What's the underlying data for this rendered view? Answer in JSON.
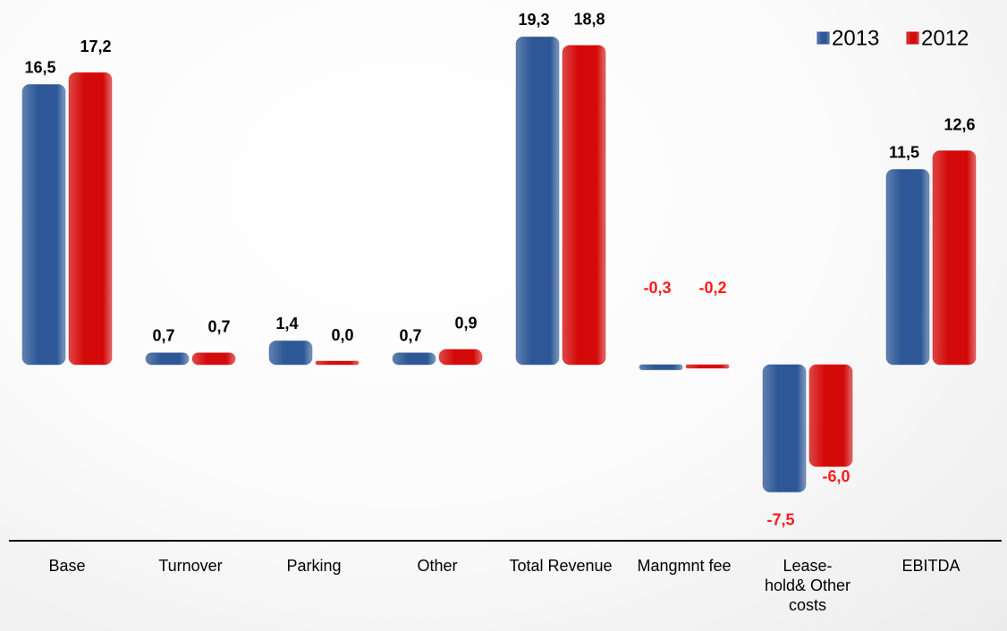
{
  "chart_data": {
    "type": "bar",
    "categories": [
      "Base",
      "Turnover",
      "Parking",
      "Other",
      "Total Revenue",
      "Mangmnt fee",
      "Lease-hold& Other costs",
      "EBITDA"
    ],
    "series": [
      {
        "name": "2013",
        "color": "#2d5796",
        "values": [
          16.5,
          0.7,
          1.4,
          0.7,
          19.3,
          -0.3,
          -7.5,
          11.5
        ],
        "value_labels": [
          "16,5",
          "0,7",
          "1,4",
          "0,7",
          "19,3",
          "-0,3",
          "-7,5",
          "11,5"
        ]
      },
      {
        "name": "2012",
        "color": "#d40a0a",
        "values": [
          17.2,
          0.7,
          0.0,
          0.9,
          18.8,
          -0.2,
          -6.0,
          12.6
        ],
        "value_labels": [
          "17,2",
          "0,7",
          "0,0",
          "0,9",
          "18,8",
          "-0,2",
          "-6,0",
          "12,6"
        ]
      }
    ],
    "legend": "top-right"
  }
}
